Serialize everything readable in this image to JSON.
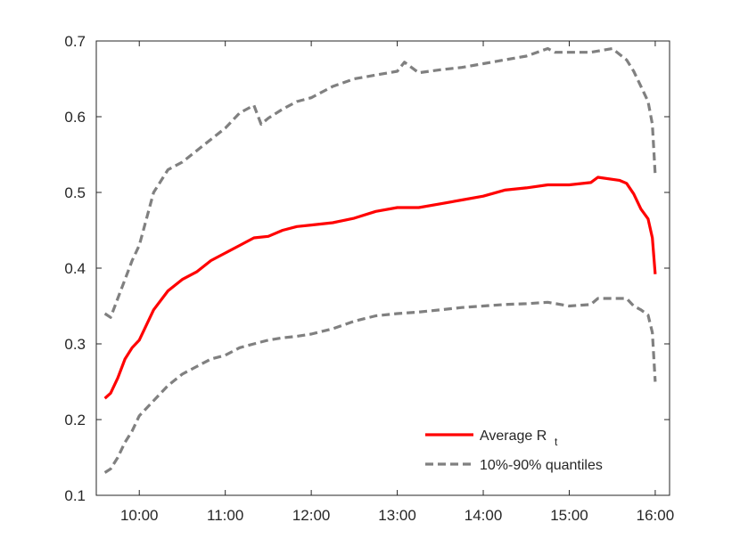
{
  "chart_data": {
    "type": "line",
    "title": "",
    "xlabel": "",
    "ylabel": "",
    "x_ticks": [
      "10:00",
      "11:00",
      "12:00",
      "13:00",
      "14:00",
      "15:00",
      "16:00"
    ],
    "y_ticks": [
      "0.1",
      "0.2",
      "0.3",
      "0.4",
      "0.5",
      "0.6",
      "0.7"
    ],
    "xlim": [
      "09:30",
      "16:10"
    ],
    "ylim": [
      0.1,
      0.7
    ],
    "grid": false,
    "legend_position": "bottom-right",
    "legend": {
      "average_main": "Average R",
      "average_sub": "t",
      "quantiles": "10%-90% quantiles"
    },
    "colors": {
      "average": "#ff0000",
      "quantiles": "#808080",
      "axis": "#262626"
    },
    "series": [
      {
        "name": "Average R t",
        "style": "solid",
        "x": [
          "09:36",
          "09:40",
          "09:45",
          "09:50",
          "09:55",
          "10:00",
          "10:10",
          "10:20",
          "10:30",
          "10:40",
          "10:50",
          "11:00",
          "11:10",
          "11:20",
          "11:30",
          "11:40",
          "11:50",
          "12:00",
          "12:15",
          "12:30",
          "12:45",
          "13:00",
          "13:15",
          "13:30",
          "13:45",
          "14:00",
          "14:15",
          "14:30",
          "14:45",
          "15:00",
          "15:15",
          "15:20",
          "15:35",
          "15:40",
          "15:45",
          "15:50",
          "15:55",
          "15:58",
          "16:00"
        ],
        "y": [
          0.228,
          0.235,
          0.255,
          0.28,
          0.295,
          0.305,
          0.345,
          0.37,
          0.385,
          0.395,
          0.41,
          0.42,
          0.43,
          0.44,
          0.442,
          0.45,
          0.455,
          0.457,
          0.46,
          0.466,
          0.475,
          0.48,
          0.48,
          0.485,
          0.49,
          0.495,
          0.503,
          0.506,
          0.51,
          0.51,
          0.513,
          0.52,
          0.516,
          0.512,
          0.498,
          0.478,
          0.465,
          0.44,
          0.392
        ]
      },
      {
        "name": "90% quantile",
        "style": "dashed",
        "x": [
          "09:36",
          "09:40",
          "09:45",
          "09:50",
          "09:55",
          "10:00",
          "10:10",
          "10:20",
          "10:30",
          "10:40",
          "10:50",
          "11:00",
          "11:10",
          "11:20",
          "11:25",
          "11:30",
          "11:40",
          "11:50",
          "12:00",
          "12:15",
          "12:30",
          "12:45",
          "13:00",
          "13:05",
          "13:15",
          "13:30",
          "13:45",
          "14:00",
          "14:15",
          "14:30",
          "14:45",
          "14:50",
          "15:00",
          "15:15",
          "15:30",
          "15:40",
          "15:45",
          "15:50",
          "15:55",
          "15:58",
          "16:00"
        ],
        "y": [
          0.34,
          0.335,
          0.36,
          0.385,
          0.41,
          0.43,
          0.5,
          0.53,
          0.54,
          0.555,
          0.57,
          0.585,
          0.605,
          0.615,
          0.59,
          0.598,
          0.61,
          0.62,
          0.625,
          0.64,
          0.65,
          0.655,
          0.66,
          0.672,
          0.658,
          0.662,
          0.665,
          0.67,
          0.675,
          0.68,
          0.69,
          0.685,
          0.685,
          0.685,
          0.69,
          0.675,
          0.66,
          0.64,
          0.62,
          0.59,
          0.523
        ]
      },
      {
        "name": "10% quantile",
        "style": "dashed",
        "x": [
          "09:36",
          "09:40",
          "09:45",
          "09:50",
          "09:55",
          "10:00",
          "10:10",
          "10:20",
          "10:30",
          "10:40",
          "10:50",
          "11:00",
          "11:10",
          "11:20",
          "11:30",
          "11:40",
          "11:50",
          "12:00",
          "12:15",
          "12:30",
          "12:45",
          "13:00",
          "13:15",
          "13:30",
          "13:45",
          "14:00",
          "14:15",
          "14:30",
          "14:45",
          "15:00",
          "15:15",
          "15:20",
          "15:30",
          "15:40",
          "15:45",
          "15:50",
          "15:55",
          "15:58",
          "16:00"
        ],
        "y": [
          0.13,
          0.135,
          0.15,
          0.17,
          0.185,
          0.205,
          0.225,
          0.245,
          0.26,
          0.27,
          0.28,
          0.285,
          0.295,
          0.3,
          0.305,
          0.308,
          0.31,
          0.313,
          0.32,
          0.33,
          0.337,
          0.34,
          0.342,
          0.345,
          0.348,
          0.35,
          0.352,
          0.353,
          0.355,
          0.35,
          0.352,
          0.36,
          0.36,
          0.36,
          0.35,
          0.345,
          0.338,
          0.315,
          0.25
        ]
      }
    ]
  }
}
